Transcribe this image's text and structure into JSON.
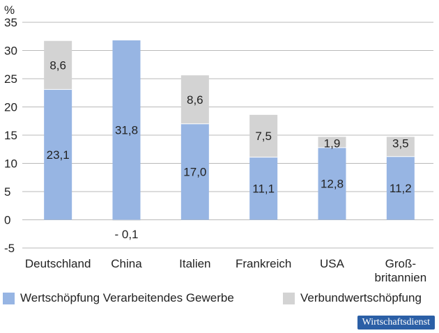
{
  "chart_data": {
    "type": "bar",
    "stacked": true,
    "unit_label": "%",
    "categories": [
      "Deutschland",
      "China",
      "Italien",
      "Frankreich",
      "USA",
      "Groß-\nbritannien"
    ],
    "series": [
      {
        "name": "Wertschöpfung Verarbeitendes Gewerbe",
        "color": "#97b5e3",
        "values": [
          23.1,
          31.8,
          17.0,
          11.1,
          12.8,
          11.2
        ],
        "labels": [
          "23,1",
          "31,8",
          "17,0",
          "11,1",
          "12,8",
          "11,2"
        ]
      },
      {
        "name": "Verbundwertschöpfung",
        "color": "#d3d3d3",
        "values": [
          8.6,
          -0.1,
          8.6,
          7.5,
          1.9,
          3.5
        ],
        "labels": [
          "8,6",
          "- 0,1",
          "8,6",
          "7,5",
          "1,9",
          "3,5"
        ]
      }
    ],
    "yticks": [
      "35",
      "30",
      "25",
      "20",
      "15",
      "10",
      "5",
      "0",
      "-5"
    ],
    "ylim": [
      -5,
      35
    ],
    "grid": true,
    "legend": "bottom"
  },
  "logo_text": "Wirtschaftsdienst"
}
